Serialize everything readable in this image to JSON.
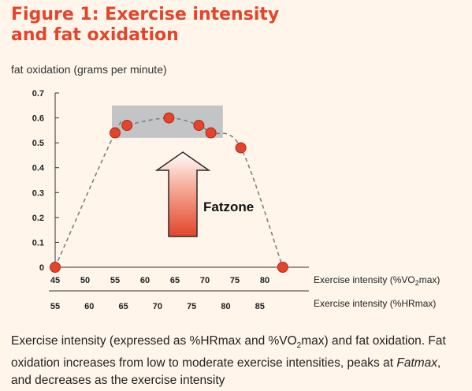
{
  "title": {
    "line1": "Figure 1: Exercise intensity",
    "line2": "and fat oxidation"
  },
  "caption": {
    "part1": "Exercise intensity (expressed as %HRmax and %VO",
    "sub1": "2",
    "part2": "max) and fat oxidation. Fat oxidation increases from low to moderate exercise intensities, peaks at ",
    "fatmax": "Fatmax",
    "part3": ", and decreases as the exercise intensity"
  },
  "colors": {
    "accent": "#e2452b",
    "zone_box": "#c3c4c6",
    "curve": "#808080",
    "background": "#fff5ea"
  },
  "chart_data": {
    "type": "scatter",
    "ylabel": "fat oxidation (grams per minute)",
    "ylim": [
      0,
      0.7
    ],
    "yticks": [
      "0",
      "0.1",
      "0.2",
      "0.3",
      "0.4",
      "0.5",
      "0.6",
      "0.7"
    ],
    "xlim": [
      45,
      85
    ],
    "xticks": [
      45,
      50,
      55,
      60,
      65,
      70,
      75,
      80
    ],
    "xlabel": {
      "main": "Exercise intensity (%VO",
      "sub": "2",
      "tail": "max)"
    },
    "x2ticks": [
      55,
      60,
      65,
      70,
      75,
      80,
      85
    ],
    "x2label": "Exercise intensity (%HRmax)",
    "points": [
      {
        "x": 45,
        "y": 0
      },
      {
        "x": 55,
        "y": 0.54
      },
      {
        "x": 57,
        "y": 0.57
      },
      {
        "x": 64,
        "y": 0.6
      },
      {
        "x": 69,
        "y": 0.57
      },
      {
        "x": 71,
        "y": 0.54
      },
      {
        "x": 76,
        "y": 0.48
      },
      {
        "x": 83,
        "y": 0
      }
    ],
    "zone": {
      "x_start": 55,
      "x_end": 73,
      "y_start": 0.52,
      "y_end": 0.65
    },
    "annotation": "Fatzone",
    "grid": false,
    "legend": "none"
  }
}
